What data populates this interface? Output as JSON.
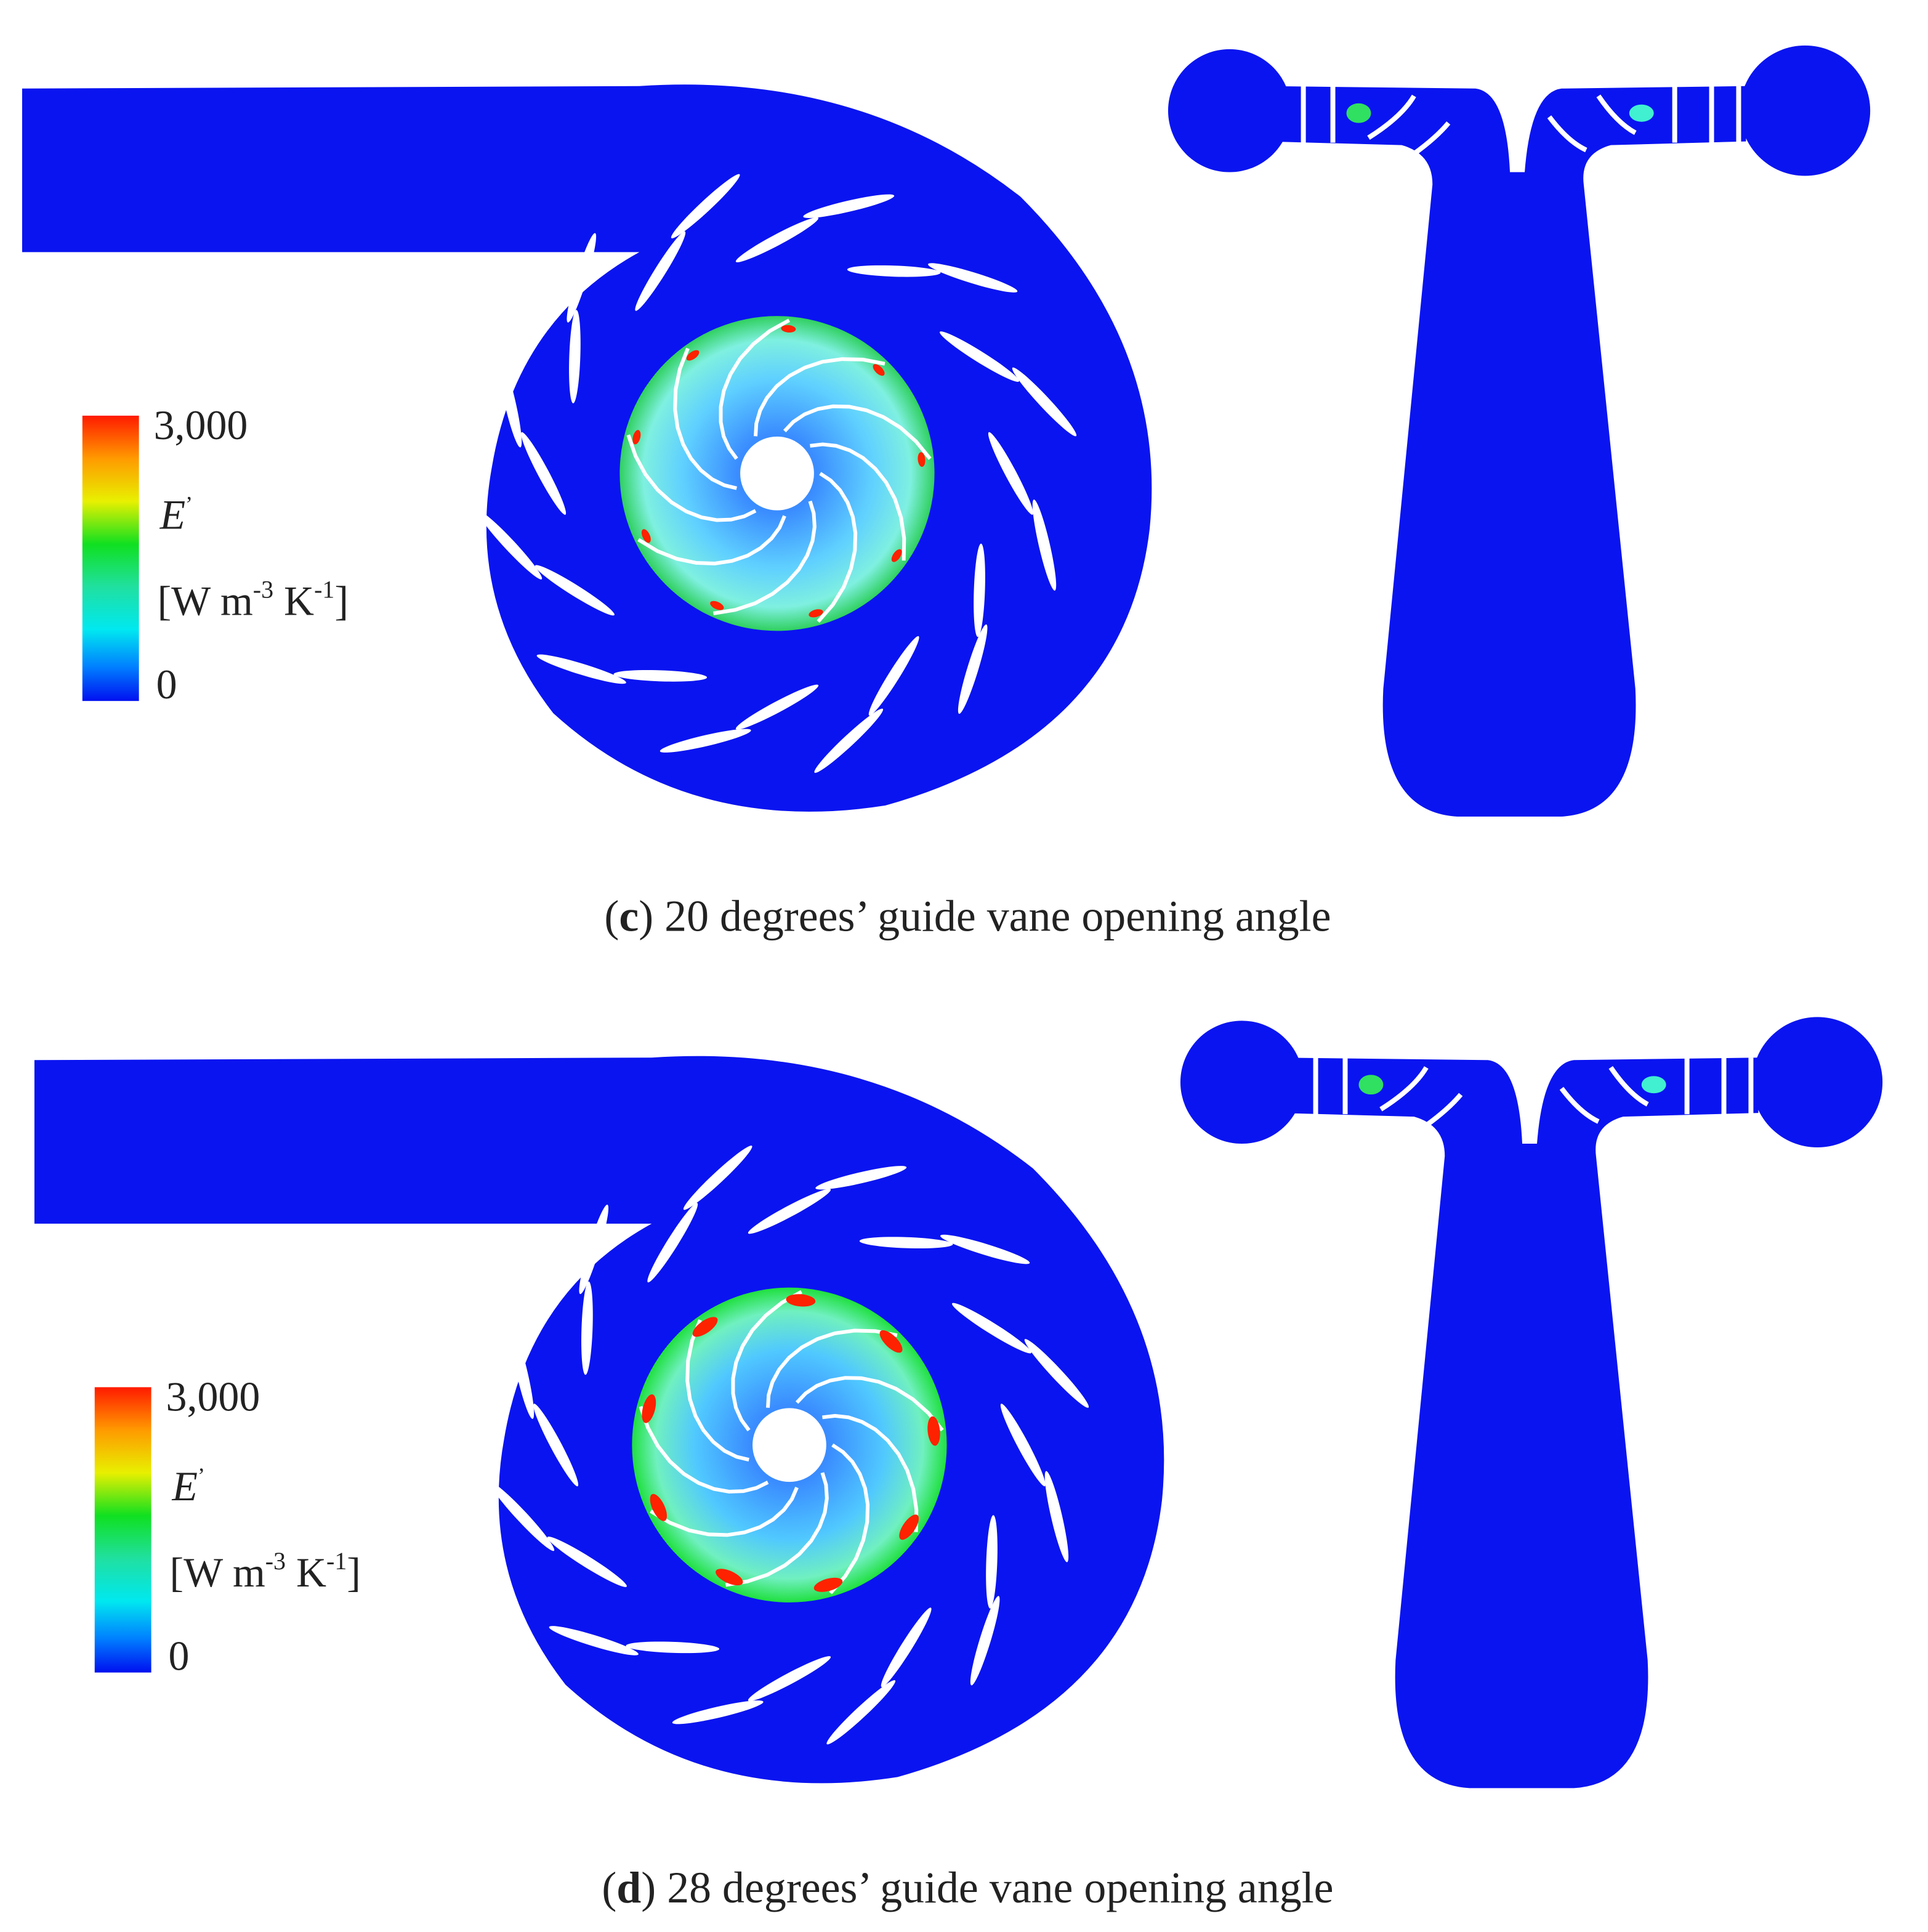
{
  "panels": [
    {
      "caption": {
        "open": "(",
        "letter": "c",
        "rest": ") 20 degrees’ guide vane opening angle"
      },
      "colorbar": {
        "max": "3,000",
        "symbol": "E",
        "symbol_mark": "’",
        "unit_open": "[W m",
        "unit_exp1": "-3",
        "unit_k": " K",
        "unit_exp2": "-1",
        "unit_close": "]",
        "min": "0"
      }
    },
    {
      "caption": {
        "open": "(",
        "letter": "d",
        "rest": ") 28 degrees’ guide vane opening angle"
      },
      "colorbar": {
        "max": "3,000",
        "symbol": "E",
        "symbol_mark": "’",
        "unit_open": "[W m",
        "unit_exp1": "-3",
        "unit_k": " K",
        "unit_exp2": "-1",
        "unit_close": "]",
        "min": "0"
      }
    }
  ]
}
